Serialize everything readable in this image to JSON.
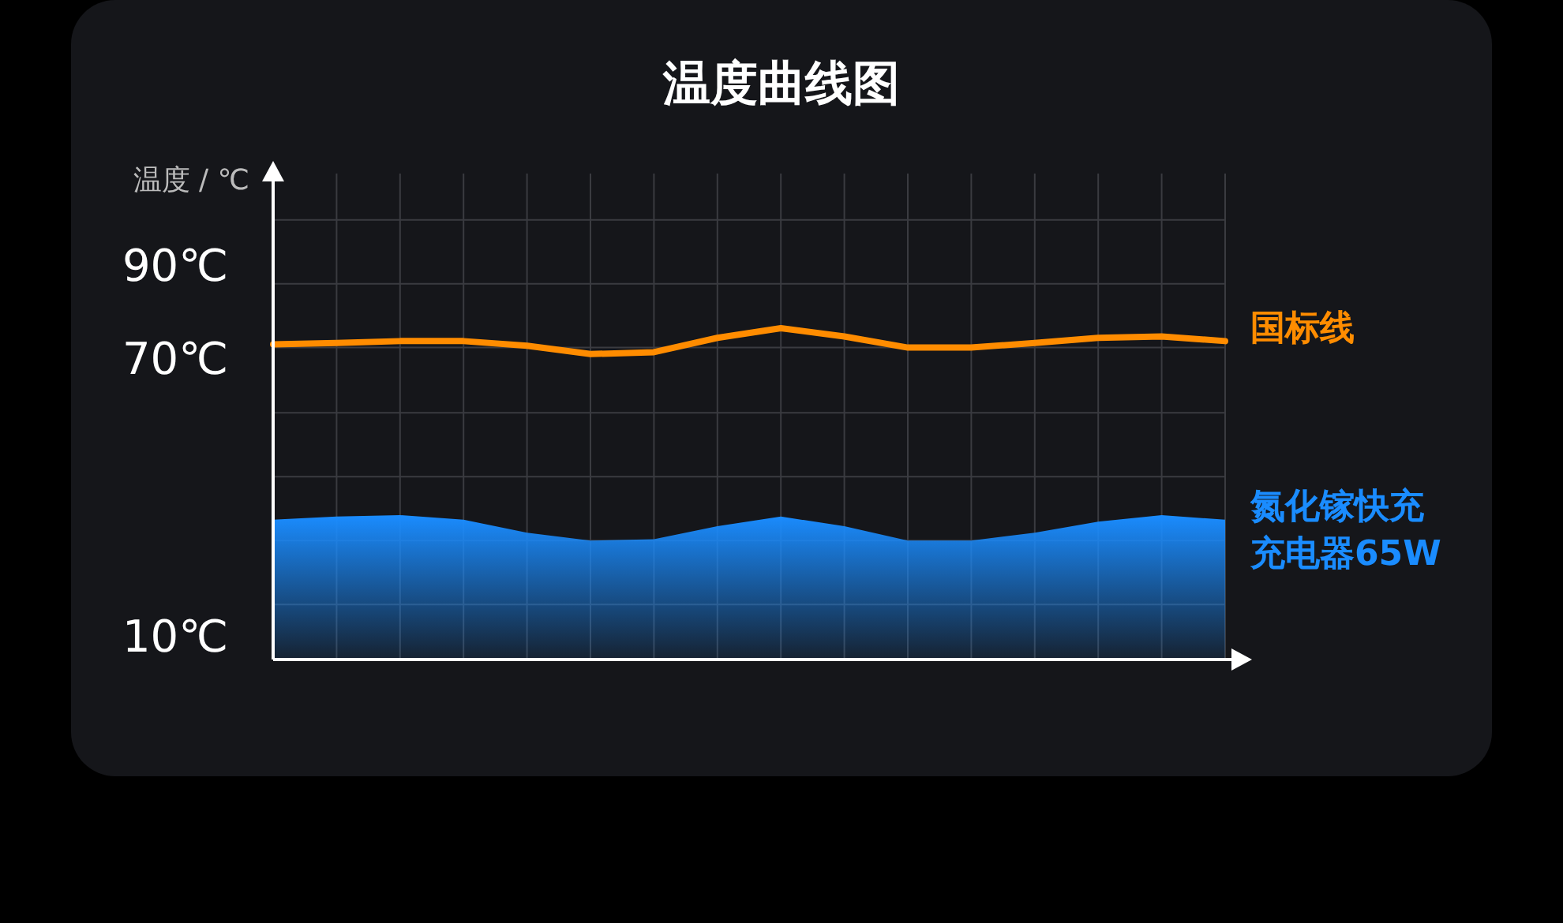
{
  "chart_data": {
    "type": "line",
    "title": "温度曲线图",
    "ylabel": "温度 / ℃",
    "categories": [
      null,
      null,
      null,
      null,
      null,
      null,
      null,
      null,
      null,
      null,
      null,
      null,
      null,
      null,
      null,
      null
    ],
    "ylim": [
      5,
      110
    ],
    "yticks": [
      {
        "value": 100,
        "label": null
      },
      {
        "value": 90,
        "label": "90℃"
      },
      {
        "value": 86.2,
        "label": null
      },
      {
        "value": 72.4,
        "label": null
      },
      {
        "value": 70,
        "label": "70℃"
      },
      {
        "value": 58.3,
        "label": null
      },
      {
        "value": 44.5,
        "label": null
      },
      {
        "value": 30.7,
        "label": null
      },
      {
        "value": 16.9,
        "label": null
      },
      {
        "value": 10,
        "label": "10℃"
      }
    ],
    "grid": true,
    "series": [
      {
        "name": "国标线",
        "color": "#ff8c00",
        "values": [
          73.1,
          73.4,
          73.8,
          73.8,
          72.8,
          71.0,
          71.4,
          74.5,
          76.6,
          74.8,
          72.4,
          72.4,
          73.4,
          74.5,
          74.8,
          73.8
        ]
      },
      {
        "name": "氮化镓快充充电器65W",
        "type": "area",
        "color": "#1a8cff",
        "values": [
          35.2,
          35.9,
          36.2,
          35.2,
          32.4,
          30.7,
          31.0,
          33.8,
          35.9,
          33.8,
          30.7,
          30.7,
          32.4,
          34.8,
          36.2,
          35.2
        ]
      }
    ]
  }
}
